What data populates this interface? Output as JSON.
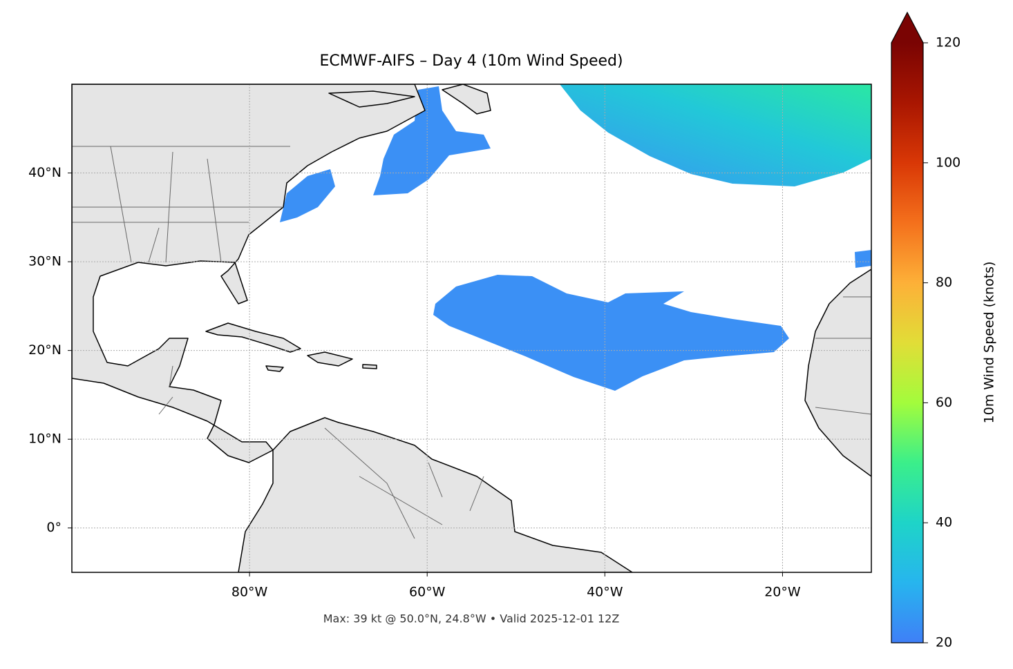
{
  "chart_data": {
    "type": "map",
    "title": "ECMWF-AIFS – Day 4 (10m Wind Speed)",
    "annotation": "Max: 39 kt @ 50.0°N, 24.8°W • Valid 2025-12-01 12Z",
    "xlim": [
      -100,
      -10
    ],
    "ylim": [
      -5,
      50
    ],
    "xticks": [
      {
        "value": -80,
        "label": "80°W"
      },
      {
        "value": -60,
        "label": "60°W"
      },
      {
        "value": -40,
        "label": "40°W"
      },
      {
        "value": -20,
        "label": "20°W"
      }
    ],
    "yticks": [
      {
        "value": 0,
        "label": "0°"
      },
      {
        "value": 10,
        "label": "10°N"
      },
      {
        "value": 20,
        "label": "20°N"
      },
      {
        "value": 30,
        "label": "30°N"
      },
      {
        "value": 40,
        "label": "40°N"
      }
    ],
    "grid": true,
    "colorbar": {
      "label": "10m Wind Speed (knots)",
      "lim": [
        20,
        120
      ],
      "ticks": [
        20,
        40,
        60,
        80,
        100,
        120
      ]
    }
  }
}
